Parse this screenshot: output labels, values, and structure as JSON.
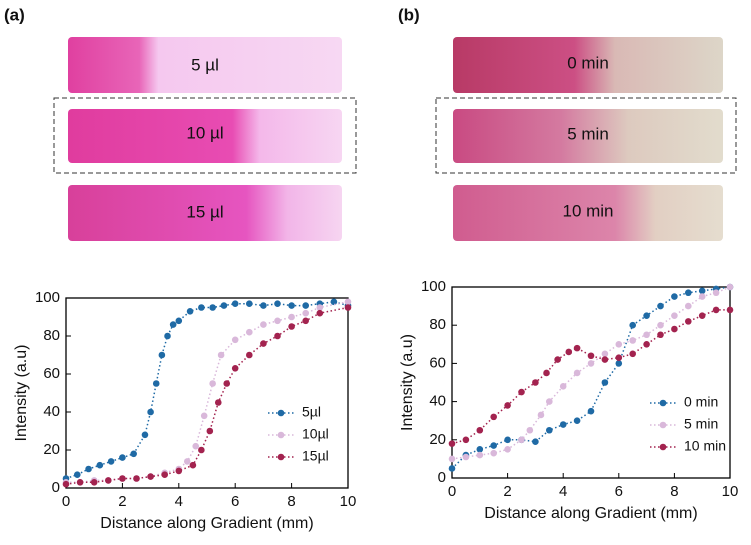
{
  "panels": [
    {
      "label": "(a)",
      "strips": [
        "5 µl",
        "10 µl",
        "15 µl"
      ]
    },
    {
      "label": "(b)",
      "strips": [
        "0 min",
        "5 min",
        "10 min"
      ]
    }
  ],
  "chart_data": [
    {
      "type": "scatter",
      "xlabel": "Distance along Gradient (mm)",
      "ylabel": "Intensity (a.u)",
      "xlim": [
        0,
        10
      ],
      "ylim": [
        0,
        100
      ],
      "xticks": [
        0,
        2,
        4,
        6,
        8,
        10
      ],
      "yticks": [
        0,
        20,
        40,
        60,
        80,
        100
      ],
      "legend": "lower right",
      "series": [
        {
          "name": "5µl",
          "color": "#1f6aa5",
          "x": [
            0,
            0.4,
            0.8,
            1.2,
            1.6,
            2.0,
            2.4,
            2.8,
            3.0,
            3.2,
            3.4,
            3.6,
            3.8,
            4.0,
            4.4,
            4.8,
            5.2,
            5.6,
            6,
            6.5,
            7,
            7.5,
            8,
            8.5,
            9,
            9.5,
            10
          ],
          "values": [
            5,
            7,
            10,
            12,
            14,
            16,
            18,
            28,
            40,
            55,
            70,
            80,
            86,
            88,
            93,
            95,
            95,
            96,
            97,
            97,
            96,
            97,
            96,
            96,
            97,
            98,
            96
          ]
        },
        {
          "name": "10µl",
          "color": "#d9b8da",
          "x": [
            0,
            0.5,
            1,
            1.5,
            2,
            2.5,
            3,
            3.5,
            4,
            4.3,
            4.6,
            4.9,
            5.2,
            5.5,
            6,
            6.5,
            7,
            7.5,
            8,
            8.5,
            9,
            10
          ],
          "values": [
            3,
            3,
            4,
            4,
            5,
            5,
            6,
            8,
            10,
            14,
            22,
            38,
            55,
            70,
            78,
            82,
            86,
            88,
            90,
            92,
            95,
            98
          ]
        },
        {
          "name": "15µl",
          "color": "#a3234f",
          "x": [
            0,
            0.5,
            1,
            1.5,
            2,
            2.5,
            3,
            3.5,
            4,
            4.5,
            4.8,
            5.1,
            5.4,
            5.7,
            6,
            6.5,
            7,
            7.5,
            8,
            8.5,
            9,
            10
          ],
          "values": [
            2,
            3,
            3,
            4,
            5,
            5,
            6,
            7,
            9,
            12,
            20,
            30,
            45,
            55,
            63,
            70,
            76,
            80,
            85,
            88,
            92,
            95
          ]
        }
      ]
    },
    {
      "type": "scatter",
      "xlabel": "Distance along Gradient (mm)",
      "ylabel": "Intensity (a.u)",
      "xlim": [
        0,
        10
      ],
      "ylim": [
        0,
        100
      ],
      "xticks": [
        0,
        2,
        4,
        6,
        8,
        10
      ],
      "yticks": [
        0,
        20,
        40,
        60,
        80,
        100
      ],
      "legend": "lower right",
      "series": [
        {
          "name": "0 min",
          "color": "#1f6aa5",
          "x": [
            0,
            0.5,
            1,
            1.5,
            2,
            2.5,
            3,
            3.5,
            4,
            4.5,
            5,
            5.5,
            6,
            6.5,
            7,
            7.5,
            8,
            8.5,
            9,
            9.5,
            10
          ],
          "values": [
            5,
            12,
            15,
            17,
            20,
            20,
            19,
            25,
            28,
            30,
            35,
            50,
            60,
            80,
            85,
            90,
            95,
            97,
            98,
            99,
            100
          ]
        },
        {
          "name": "5 min",
          "color": "#d9b8da",
          "x": [
            0,
            0.5,
            1,
            1.5,
            2,
            2.5,
            2.8,
            3.2,
            3.5,
            4,
            4.5,
            5,
            5.5,
            6,
            6.5,
            7,
            7.5,
            8,
            8.5,
            9,
            9.5,
            10
          ],
          "values": [
            10,
            11,
            12,
            13,
            15,
            20,
            25,
            33,
            40,
            48,
            55,
            60,
            65,
            70,
            72,
            75,
            80,
            85,
            90,
            95,
            97,
            100
          ]
        },
        {
          "name": "10 min",
          "color": "#a3234f",
          "x": [
            0,
            0.5,
            1,
            1.5,
            2,
            2.5,
            3,
            3.4,
            3.8,
            4.2,
            4.5,
            5,
            5.5,
            6,
            6.5,
            7,
            7.5,
            8,
            8.5,
            9,
            9.5,
            10
          ],
          "values": [
            18,
            20,
            25,
            32,
            38,
            45,
            50,
            55,
            62,
            66,
            68,
            64,
            62,
            63,
            65,
            70,
            75,
            78,
            82,
            85,
            88,
            88
          ]
        }
      ]
    }
  ]
}
